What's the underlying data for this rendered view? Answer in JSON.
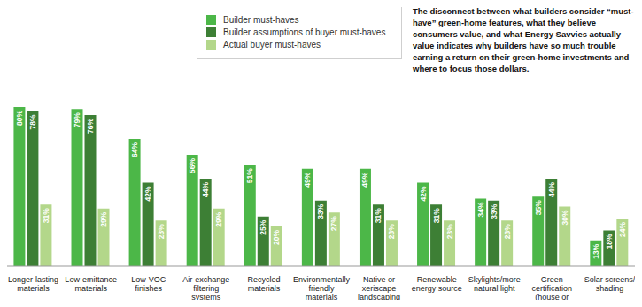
{
  "chart_data": {
    "type": "bar",
    "annotation": "The disconnect between what builders consider “must-have” green-home features, what they believe consumers value, and what Energy Savvies actually value indicates why builders have so much trouble earning a return on their green-home investments and where to focus those dollars.",
    "categories": [
      "Longer-lasting materials",
      "Low-emittance materials",
      "Low-VOC finishes",
      "Air-exchange filtering systems",
      "Recycled materials",
      "Environmentally friendly materials",
      "Native or xeriscape landscaping",
      "Renewable energy source",
      "Skylights/more natural light",
      "Green certification (house or systems)",
      "Solar screens/ shading"
    ],
    "series": [
      {
        "name": "Builder must-haves",
        "color": "#4cb748",
        "values": [
          80,
          79,
          64,
          56,
          51,
          49,
          49,
          42,
          34,
          35,
          13
        ],
        "value_labels": [
          "80%",
          "79%",
          "64%",
          "56%",
          "51%",
          "49%",
          "49%",
          "42%",
          "34%",
          "35%",
          "13%"
        ]
      },
      {
        "name": "Builder assumptions of buyer must-haves",
        "color": "#3d7f35",
        "values": [
          78,
          76,
          42,
          44,
          25,
          33,
          31,
          31,
          33,
          44,
          18
        ],
        "value_labels": [
          "78%",
          "76%",
          "42%",
          "44%",
          "25%",
          "33%",
          "31%",
          "31%",
          "33%",
          "44%",
          "18%"
        ]
      },
      {
        "name": "Actual buyer must-haves",
        "color": "#b3d78a",
        "values": [
          31,
          29,
          23,
          29,
          20,
          27,
          23,
          23,
          23,
          30,
          24
        ],
        "value_labels": [
          "31%",
          "29%",
          "23%",
          "29%",
          "20%",
          "27%",
          "23%",
          "23%",
          "23%",
          "30%",
          "24%"
        ]
      }
    ],
    "ylim": [
      0,
      80
    ],
    "grid": false,
    "legend": "top",
    "data_labels": true,
    "tick_labels": "x"
  }
}
